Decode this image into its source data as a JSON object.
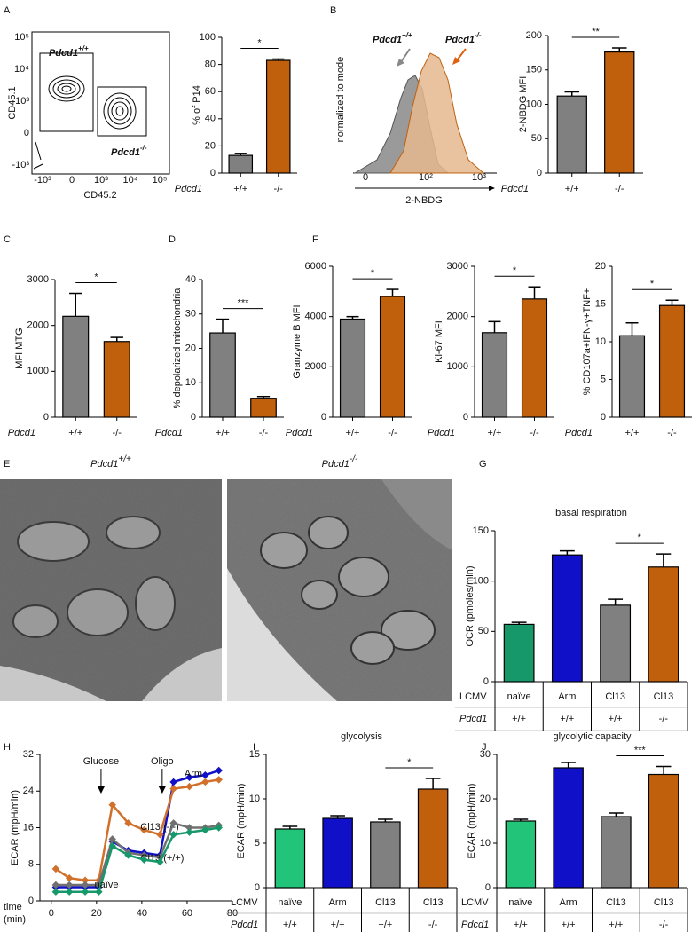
{
  "panel_letters": [
    "A",
    "B",
    "C",
    "D",
    "F",
    "E",
    "G",
    "H",
    "I",
    "J"
  ],
  "flow_plot": {
    "ylabel": "CD45.1",
    "xlabel": "CD45.2",
    "populations": [
      {
        "gene": "Pdcd1",
        "genotype": "+/+"
      },
      {
        "gene": "Pdcd1",
        "genotype": "-/-"
      }
    ],
    "xticks": [
      "-10³",
      "0",
      "10³",
      "10⁴",
      "10⁵"
    ],
    "yticks": [
      "10⁵",
      "10⁴",
      "10³",
      "0",
      "-10³"
    ]
  },
  "histogram_plot": {
    "ylabel": "normalized to mode",
    "xlabel": "2-NBDG",
    "populations": [
      {
        "gene": "Pdcd1",
        "genotype": "+/+"
      },
      {
        "gene": "Pdcd1",
        "genotype": "-/-"
      }
    ],
    "xticks": [
      "0",
      "10²",
      "10³"
    ]
  },
  "em_images": [
    {
      "gene": "Pdcd1",
      "genotype": "+/+"
    },
    {
      "gene": "Pdcd1",
      "genotype": "-/-"
    }
  ],
  "chart_data": [
    {
      "type": "bar",
      "ylabel": "% of P14",
      "group_label": "Pdcd1",
      "categories": [
        "+/+",
        "-/-"
      ],
      "values": [
        13,
        83
      ],
      "errors": [
        1.5,
        1
      ],
      "colors": [
        "#808080",
        "#c0600c"
      ],
      "ylim": [
        0,
        100
      ],
      "yticks": [
        0,
        20,
        40,
        60,
        80,
        100
      ],
      "significance": "*"
    },
    {
      "type": "bar",
      "ylabel": "2-NBDG MFI",
      "group_label": "Pdcd1",
      "categories": [
        "+/+",
        "-/-"
      ],
      "values": [
        112,
        176
      ],
      "errors": [
        6,
        6
      ],
      "colors": [
        "#808080",
        "#c0600c"
      ],
      "ylim": [
        0,
        200
      ],
      "yticks": [
        0,
        50,
        100,
        150,
        200
      ],
      "significance": "**"
    },
    {
      "type": "bar",
      "ylabel": "MFI MTG",
      "group_label": "Pdcd1",
      "categories": [
        "+/+",
        "-/-"
      ],
      "values": [
        2200,
        1650
      ],
      "errors": [
        500,
        90
      ],
      "colors": [
        "#808080",
        "#c0600c"
      ],
      "ylim": [
        0,
        3000
      ],
      "yticks": [
        0,
        1000,
        2000,
        3000
      ],
      "significance": "*"
    },
    {
      "type": "bar",
      "ylabel": "% depolarized mitochondria",
      "group_label": "Pdcd1",
      "categories": [
        "+/+",
        "-/-"
      ],
      "values": [
        24.5,
        5.5
      ],
      "errors": [
        4,
        0.5
      ],
      "colors": [
        "#808080",
        "#c0600c"
      ],
      "ylim": [
        0,
        40
      ],
      "yticks": [
        0,
        10,
        20,
        30,
        40
      ],
      "significance": "***"
    },
    {
      "type": "bar",
      "ylabel": "Granzyme B MFI",
      "group_label": "Pdcd1",
      "categories": [
        "+/+",
        "-/-"
      ],
      "values": [
        3900,
        4800
      ],
      "errors": [
        100,
        280
      ],
      "colors": [
        "#808080",
        "#c0600c"
      ],
      "ylim": [
        0,
        6000
      ],
      "yticks": [
        0,
        2000,
        4000,
        6000
      ],
      "significance": "*"
    },
    {
      "type": "bar",
      "ylabel": "Ki-67 MFI",
      "group_label": "Pdcd1",
      "categories": [
        "+/+",
        "-/-"
      ],
      "values": [
        1680,
        2350
      ],
      "errors": [
        220,
        240
      ],
      "colors": [
        "#808080",
        "#c0600c"
      ],
      "ylim": [
        0,
        3000
      ],
      "yticks": [
        0,
        1000,
        2000,
        3000
      ],
      "significance": "*"
    },
    {
      "type": "bar",
      "ylabel": "% CD107a+IFN-γ+TNF+",
      "group_label": "Pdcd1",
      "categories": [
        "+/+",
        "-/-"
      ],
      "values": [
        10.8,
        14.8
      ],
      "errors": [
        1.7,
        0.7
      ],
      "colors": [
        "#808080",
        "#c0600c"
      ],
      "ylim": [
        0,
        20
      ],
      "yticks": [
        0,
        5,
        10,
        15,
        20
      ],
      "significance": "*"
    },
    {
      "type": "bar",
      "title": "basal respiration",
      "ylabel": "OCR (pmoles/min)",
      "row_labels": [
        "LCMV",
        "Pdcd1"
      ],
      "categories": [
        "naïve",
        "Arm",
        "Cl13",
        "Cl13"
      ],
      "genotypes": [
        "+/+",
        "+/+",
        "+/+",
        "-/-"
      ],
      "values": [
        57,
        126,
        76,
        114
      ],
      "errors": [
        2,
        4,
        6,
        13
      ],
      "colors": [
        "#16986a",
        "#1010c8",
        "#808080",
        "#c0600c"
      ],
      "ylim": [
        0,
        150
      ],
      "yticks": [
        0,
        50,
        100,
        150
      ],
      "significance": "*"
    },
    {
      "type": "line",
      "ylabel": "ECAR (mpH/min)",
      "xlabel_lines": [
        "time",
        "(min)"
      ],
      "x": [
        2,
        8,
        15,
        21,
        27,
        34,
        41,
        48,
        54,
        61,
        68,
        74
      ],
      "xlim": [
        -5,
        80
      ],
      "xticks": [
        0,
        20,
        40,
        60,
        80
      ],
      "ylim": [
        0,
        32
      ],
      "yticks": [
        0,
        8,
        16,
        24,
        32
      ],
      "annotations": [
        {
          "text": "Glucose",
          "x": 22
        },
        {
          "text": "Oligo",
          "x": 49
        }
      ],
      "series": [
        {
          "name": "Arm",
          "color": "#1010c8",
          "values": [
            3,
            3,
            3,
            3,
            13,
            11,
            10.5,
            10,
            26,
            27,
            27.5,
            28.5
          ]
        },
        {
          "name": "Cl13 (-/-)",
          "color": "#d0702a",
          "values": [
            7,
            5,
            4.5,
            4.5,
            21,
            17,
            15.5,
            14.5,
            24.5,
            25,
            26,
            26.5
          ]
        },
        {
          "name": "Cl13 (+/+)",
          "color": "#707070",
          "values": [
            3.5,
            3.5,
            3.5,
            3.5,
            13.5,
            10.5,
            10,
            9.5,
            17,
            16,
            16,
            16.5
          ]
        },
        {
          "name": "naïve",
          "color": "#16986a",
          "values": [
            2,
            2,
            2,
            2,
            12,
            10,
            9,
            8.5,
            14.5,
            15,
            15.5,
            16
          ]
        }
      ]
    },
    {
      "type": "bar",
      "title": "glycolysis",
      "ylabel": "ECAR (mpH/min)",
      "row_labels": [
        "LCMV",
        "Pdcd1"
      ],
      "categories": [
        "naïve",
        "Arm",
        "Cl13",
        "Cl13"
      ],
      "genotypes": [
        "+/+",
        "+/+",
        "+/+",
        "-/-"
      ],
      "values": [
        6.6,
        7.8,
        7.4,
        11.1
      ],
      "errors": [
        0.3,
        0.3,
        0.3,
        1.2
      ],
      "colors": [
        "#22c47a",
        "#1010c8",
        "#808080",
        "#c0600c"
      ],
      "ylim": [
        0,
        15
      ],
      "yticks": [
        0,
        5,
        10,
        15
      ],
      "significance": "*"
    },
    {
      "type": "bar",
      "title": "glycolytic capacity",
      "ylabel": "ECAR (mpH/min)",
      "row_labels": [
        "LCMV",
        "Pdcd1"
      ],
      "categories": [
        "naïve",
        "Arm",
        "Cl13",
        "Cl13"
      ],
      "genotypes": [
        "+/+",
        "+/+",
        "+/+",
        "-/-"
      ],
      "values": [
        15,
        27,
        16,
        25.5
      ],
      "errors": [
        0.4,
        1.2,
        0.8,
        1.8
      ],
      "colors": [
        "#22c47a",
        "#1010c8",
        "#808080",
        "#c0600c"
      ],
      "ylim": [
        0,
        30
      ],
      "yticks": [
        0,
        10,
        20,
        30
      ],
      "significance": "***"
    }
  ]
}
